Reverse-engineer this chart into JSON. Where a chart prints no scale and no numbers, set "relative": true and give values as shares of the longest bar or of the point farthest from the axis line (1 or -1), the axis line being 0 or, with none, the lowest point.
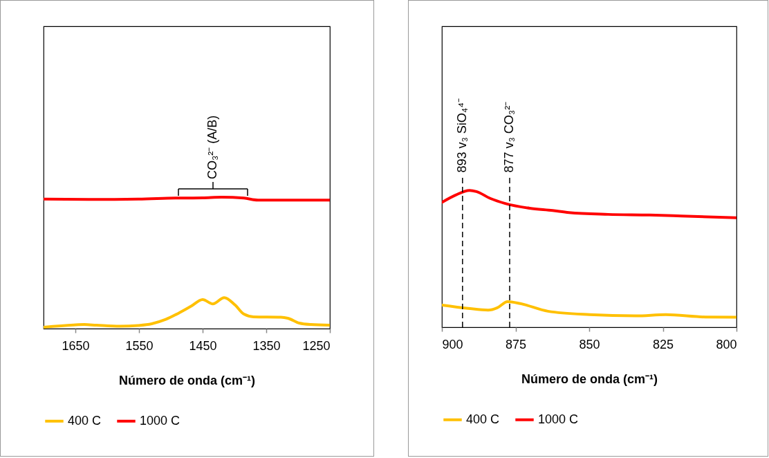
{
  "chart_data": [
    {
      "type": "line",
      "relative": true,
      "xlabel": "Número de onda (cm⁻¹)",
      "xlim": [
        1700,
        1250
      ],
      "xticks": [
        1650,
        1550,
        1450,
        1350,
        1250
      ],
      "grid": false,
      "legend": "bottom",
      "series": [
        {
          "name": "400 C",
          "color": "#ffc000",
          "x": [
            1700,
            1653,
            1636,
            1617,
            1580,
            1551,
            1530,
            1508,
            1486,
            1468,
            1450,
            1434,
            1416,
            1399,
            1385,
            1370,
            1327,
            1316,
            1298,
            1280,
            1250
          ],
          "values": [
            0.011,
            0.028,
            0.031,
            0.026,
            0.018,
            0.024,
            0.037,
            0.07,
            0.122,
            0.171,
            0.221,
            0.188,
            0.236,
            0.18,
            0.11,
            0.09,
            0.087,
            0.079,
            0.042,
            0.031,
            0.026
          ]
        },
        {
          "name": "1000 C",
          "color": "#ff0000",
          "x": [
            1700,
            1600,
            1551,
            1493,
            1450,
            1420,
            1385,
            1363,
            1300,
            1250
          ],
          "values": [
            0.985,
            0.983,
            0.985,
            0.993,
            0.995,
            1.0,
            0.993,
            0.978,
            0.978,
            0.978
          ]
        }
      ],
      "annotations": [
        "CO₃²⁻ (A/B)"
      ]
    },
    {
      "type": "line",
      "relative": true,
      "xlabel": "Número de onda (cm⁻¹)",
      "xlim": [
        900,
        800
      ],
      "xticks": [
        900,
        875,
        850,
        825,
        800
      ],
      "grid": false,
      "legend": "bottom",
      "series": [
        {
          "name": "400 C",
          "color": "#ffc000",
          "x": [
            900,
            891.1,
            884.3,
            881.2,
            877.7,
            873.4,
            864,
            849.9,
            834.2,
            824,
            810.7,
            800
          ],
          "values": [
            0.162,
            0.138,
            0.125,
            0.142,
            0.187,
            0.173,
            0.117,
            0.092,
            0.083,
            0.092,
            0.075,
            0.073
          ]
        },
        {
          "name": "1000 C",
          "color": "#ff0000",
          "x": [
            900,
            895.3,
            890.6,
            888.3,
            883.6,
            878.5,
            870.2,
            862.4,
            856.9,
            843.6,
            829.5,
            818.6,
            800
          ],
          "values": [
            0.913,
            0.967,
            1.0,
            0.992,
            0.942,
            0.905,
            0.87,
            0.853,
            0.838,
            0.825,
            0.82,
            0.813,
            0.8
          ]
        }
      ],
      "ref_lines": [
        {
          "axis": "x",
          "value": 893,
          "label": "893 v₃ SiO₄⁴⁻",
          "color": "#000000",
          "line_style": "dashed"
        },
        {
          "axis": "x",
          "value": 877,
          "label": "877 v₃ CO₃²⁻",
          "color": "#000000",
          "line_style": "dashed"
        }
      ]
    }
  ]
}
